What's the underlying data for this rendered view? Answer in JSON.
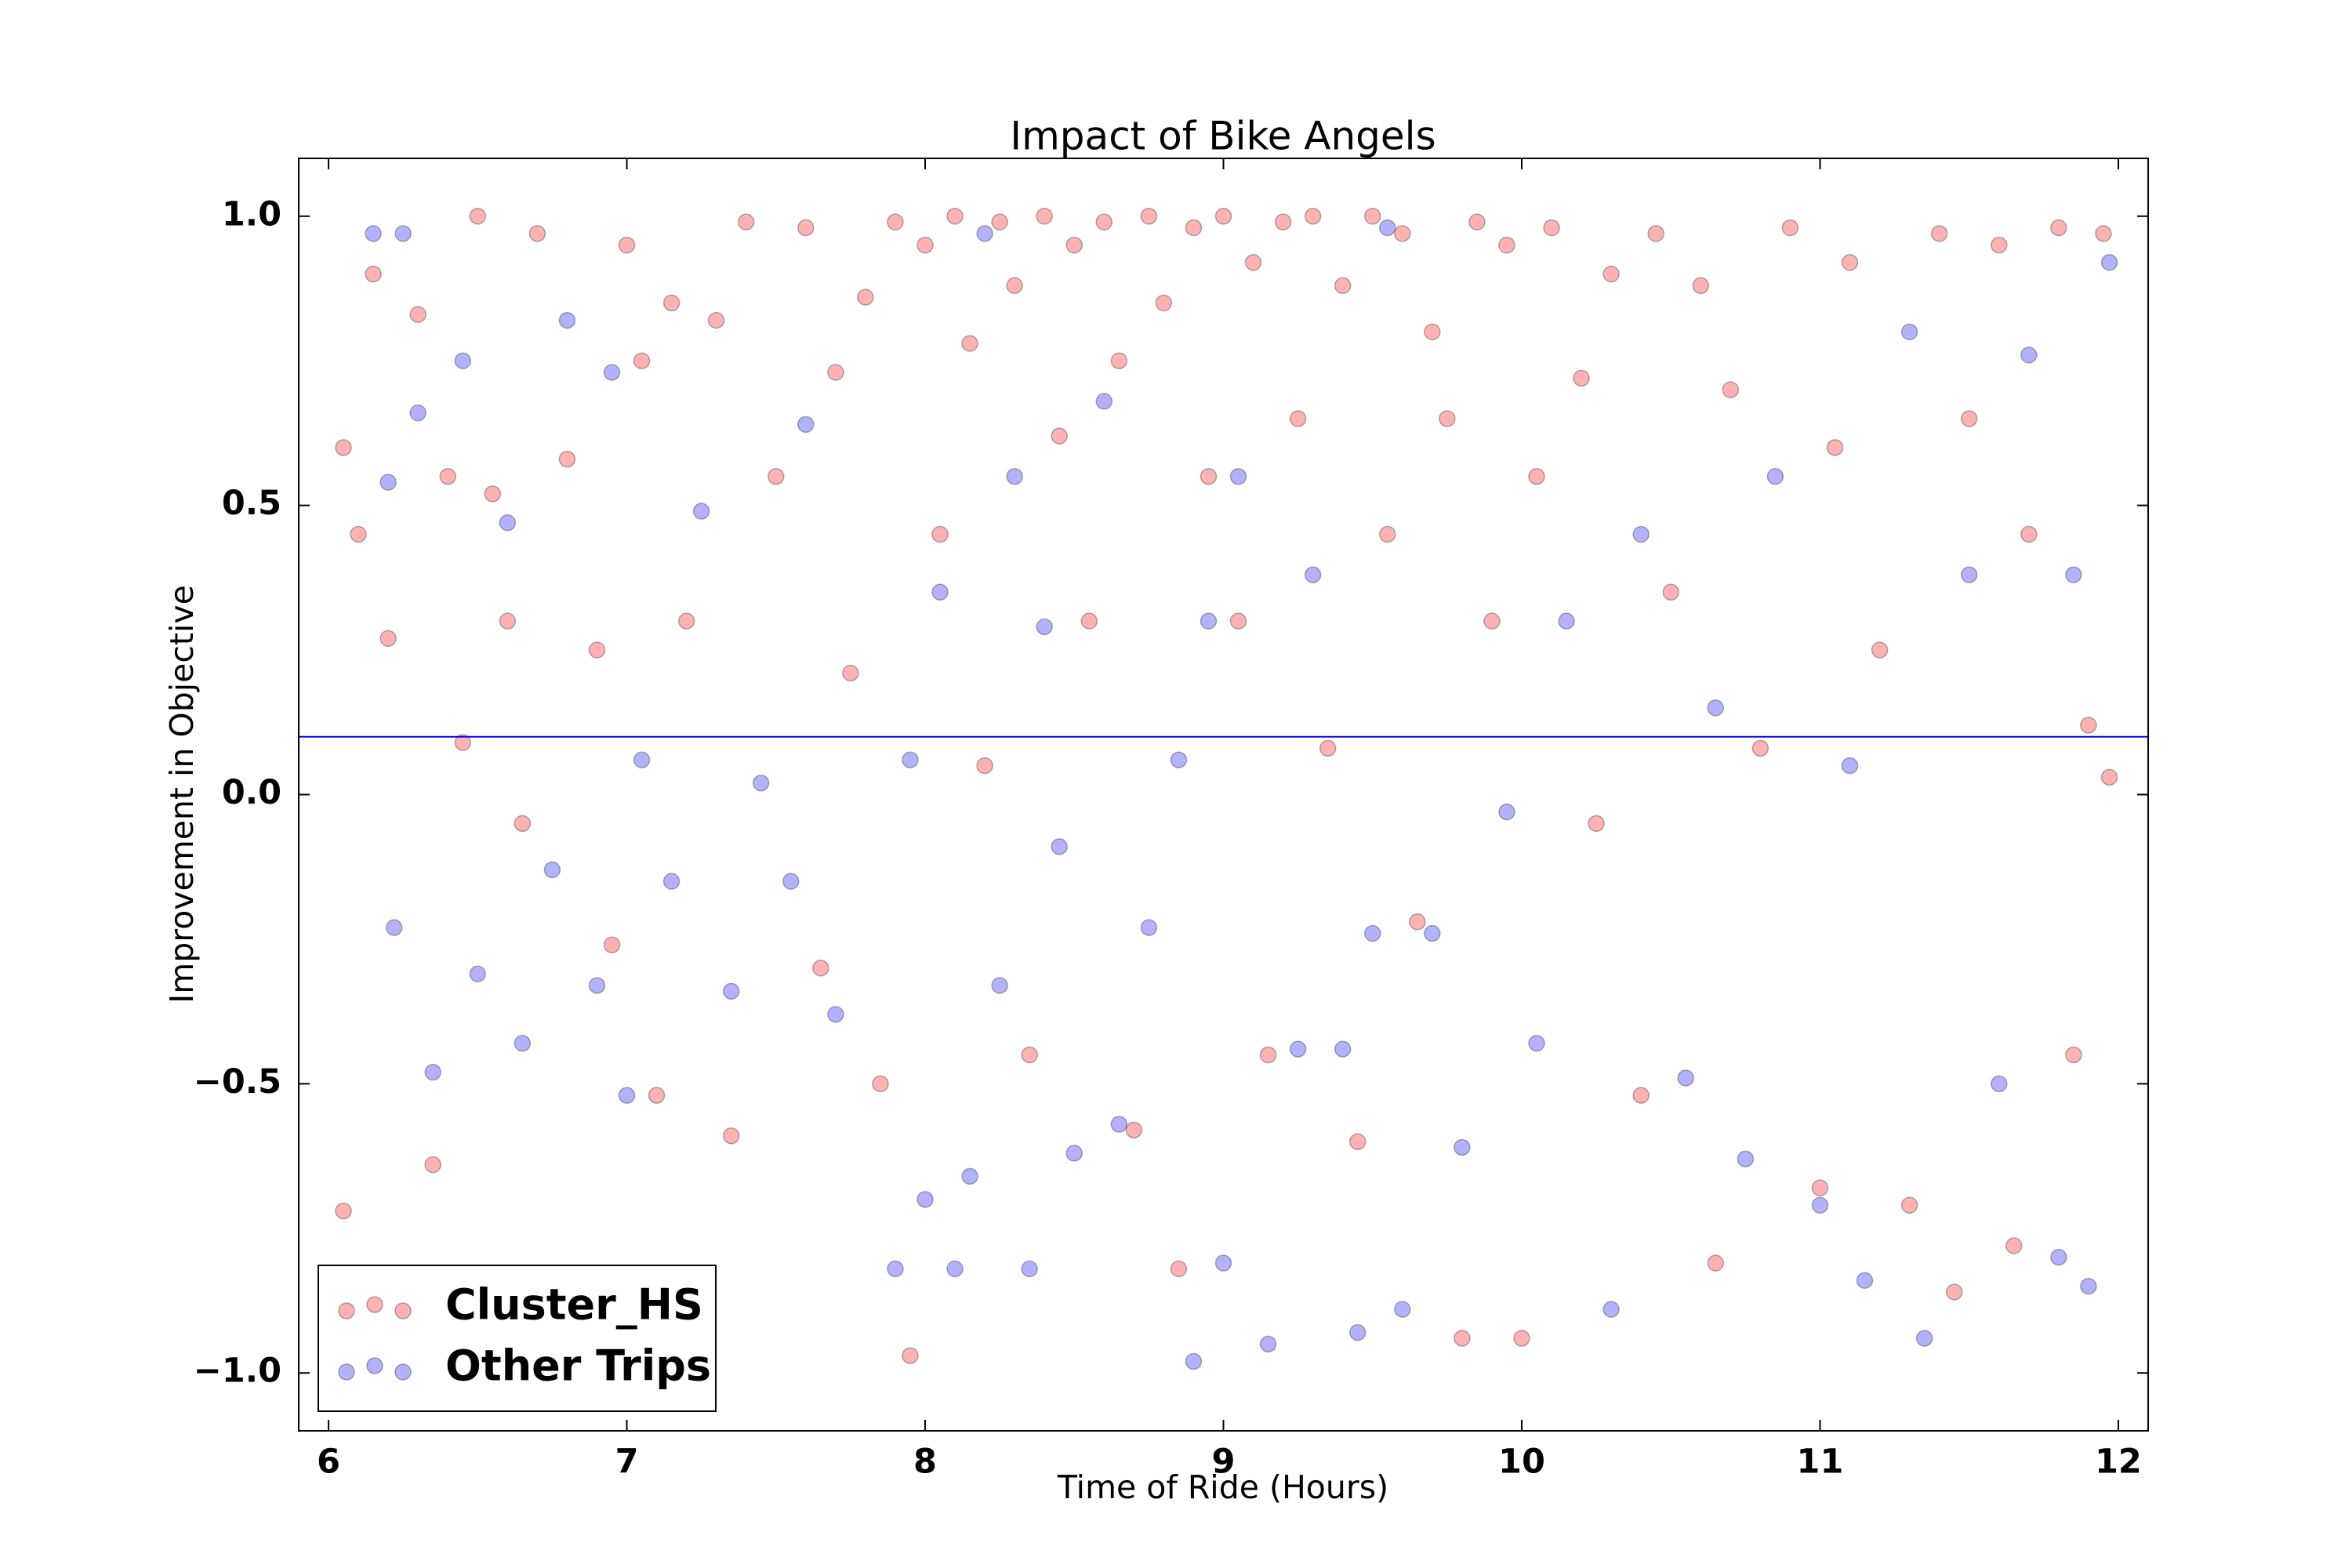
{
  "chart_data": {
    "type": "scatter",
    "title": "Impact of Bike Angels",
    "x_label": "Time of Ride (Hours)",
    "y_label": "Improvement in Objective",
    "xlim": [
      5.9,
      12.1
    ],
    "ylim": [
      -1.1,
      1.1
    ],
    "xticks": [
      6,
      7,
      8,
      9,
      10,
      11,
      12
    ],
    "yticks": [
      {
        "value": 1.0,
        "label": "1.0"
      },
      {
        "value": 0.5,
        "label": "0.5"
      },
      {
        "value": 0.0,
        "label": "0.0"
      },
      {
        "value": -0.5,
        "label": "−0.5"
      },
      {
        "value": -1.0,
        "label": "−1.0"
      }
    ],
    "legend": "lower left",
    "hlines": [
      {
        "value": 0.1,
        "color": "#0000ff"
      }
    ],
    "series": [
      {
        "name": "Cluster_HS",
        "color": "#ff0000",
        "x": [
          6.05,
          6.05,
          6.1,
          6.15,
          6.2,
          6.3,
          6.35,
          6.4,
          6.45,
          6.5,
          6.55,
          6.6,
          6.65,
          6.7,
          6.8,
          6.9,
          6.95,
          7.0,
          7.05,
          7.1,
          7.15,
          7.2,
          7.3,
          7.35,
          7.4,
          7.5,
          7.6,
          7.65,
          7.7,
          7.75,
          7.8,
          7.85,
          7.9,
          7.95,
          8.0,
          8.05,
          8.1,
          8.15,
          8.2,
          8.25,
          8.3,
          8.35,
          8.4,
          8.45,
          8.5,
          8.55,
          8.6,
          8.65,
          8.7,
          8.75,
          8.8,
          8.85,
          8.9,
          8.95,
          9.0,
          9.05,
          9.1,
          9.15,
          9.2,
          9.25,
          9.3,
          9.35,
          9.4,
          9.45,
          9.5,
          9.55,
          9.6,
          9.65,
          9.7,
          9.75,
          9.8,
          9.85,
          9.9,
          9.95,
          10.0,
          10.05,
          10.1,
          10.2,
          10.25,
          10.3,
          10.4,
          10.45,
          10.5,
          10.6,
          10.65,
          10.7,
          10.8,
          10.9,
          11.0,
          11.05,
          11.1,
          11.2,
          11.3,
          11.4,
          11.45,
          11.5,
          11.6,
          11.65,
          11.7,
          11.8,
          11.85,
          11.9,
          11.95,
          11.97
        ],
        "values": [
          0.6,
          -0.72,
          0.45,
          0.9,
          0.27,
          0.83,
          -0.64,
          0.55,
          0.09,
          1.0,
          0.52,
          0.3,
          -0.05,
          0.97,
          0.58,
          0.25,
          -0.26,
          0.95,
          0.75,
          -0.52,
          0.85,
          0.3,
          0.82,
          -0.59,
          0.99,
          0.55,
          0.98,
          -0.3,
          0.73,
          0.21,
          0.86,
          -0.5,
          0.99,
          -0.97,
          0.95,
          0.45,
          1.0,
          0.78,
          0.05,
          0.99,
          0.88,
          -0.45,
          1.0,
          0.62,
          0.95,
          0.3,
          0.99,
          0.75,
          -0.58,
          1.0,
          0.85,
          -0.82,
          0.98,
          0.55,
          1.0,
          0.3,
          0.92,
          -0.45,
          0.99,
          0.65,
          1.0,
          0.08,
          0.88,
          -0.6,
          1.0,
          0.45,
          0.97,
          -0.22,
          0.8,
          0.65,
          -0.94,
          0.99,
          0.3,
          0.95,
          -0.94,
          0.55,
          0.98,
          0.72,
          -0.05,
          0.9,
          -0.52,
          0.97,
          0.35,
          0.88,
          -0.81,
          0.7,
          0.08,
          0.98,
          -0.68,
          0.6,
          0.92,
          0.25,
          -0.71,
          0.97,
          -0.86,
          0.65,
          0.95,
          -0.78,
          0.45,
          0.98,
          -0.45,
          0.12,
          0.97,
          0.03
        ]
      },
      {
        "name": "Other Trips",
        "color": "#0000ff",
        "x": [
          6.15,
          6.2,
          6.22,
          6.25,
          6.3,
          6.35,
          6.45,
          6.5,
          6.6,
          6.65,
          6.75,
          6.8,
          6.9,
          6.95,
          7.0,
          7.05,
          7.15,
          7.25,
          7.35,
          7.45,
          7.55,
          7.6,
          7.7,
          7.9,
          7.95,
          8.0,
          8.05,
          8.1,
          8.15,
          8.2,
          8.25,
          8.3,
          8.35,
          8.4,
          8.45,
          8.5,
          8.6,
          8.65,
          8.75,
          8.85,
          8.9,
          8.95,
          9.0,
          9.05,
          9.15,
          9.25,
          9.3,
          9.4,
          9.45,
          9.5,
          9.55,
          9.6,
          9.7,
          9.8,
          9.95,
          10.05,
          10.15,
          10.3,
          10.4,
          10.55,
          10.65,
          10.75,
          10.85,
          11.0,
          11.1,
          11.15,
          11.3,
          11.35,
          11.5,
          11.6,
          11.7,
          11.8,
          11.85,
          11.9,
          11.97
        ],
        "values": [
          0.97,
          0.54,
          -0.23,
          0.97,
          0.66,
          -0.48,
          0.75,
          -0.31,
          0.47,
          -0.43,
          -0.13,
          0.82,
          -0.33,
          0.73,
          -0.52,
          0.06,
          -0.15,
          0.49,
          -0.34,
          0.02,
          -0.15,
          0.64,
          -0.38,
          -0.82,
          0.06,
          -0.7,
          0.35,
          -0.82,
          -0.66,
          0.97,
          -0.33,
          0.55,
          -0.82,
          0.29,
          -0.09,
          -0.62,
          0.68,
          -0.57,
          -0.23,
          0.06,
          -0.98,
          0.3,
          -0.81,
          0.55,
          -0.95,
          -0.44,
          0.38,
          -0.44,
          -0.93,
          -0.24,
          0.98,
          -0.89,
          -0.24,
          -0.61,
          -0.03,
          -0.43,
          0.3,
          -0.89,
          0.45,
          -0.49,
          0.15,
          -0.63,
          0.55,
          -0.71,
          0.05,
          -0.84,
          0.8,
          -0.94,
          0.38,
          -0.5,
          0.76,
          -0.8,
          0.38,
          -0.85,
          0.92
        ]
      }
    ]
  }
}
